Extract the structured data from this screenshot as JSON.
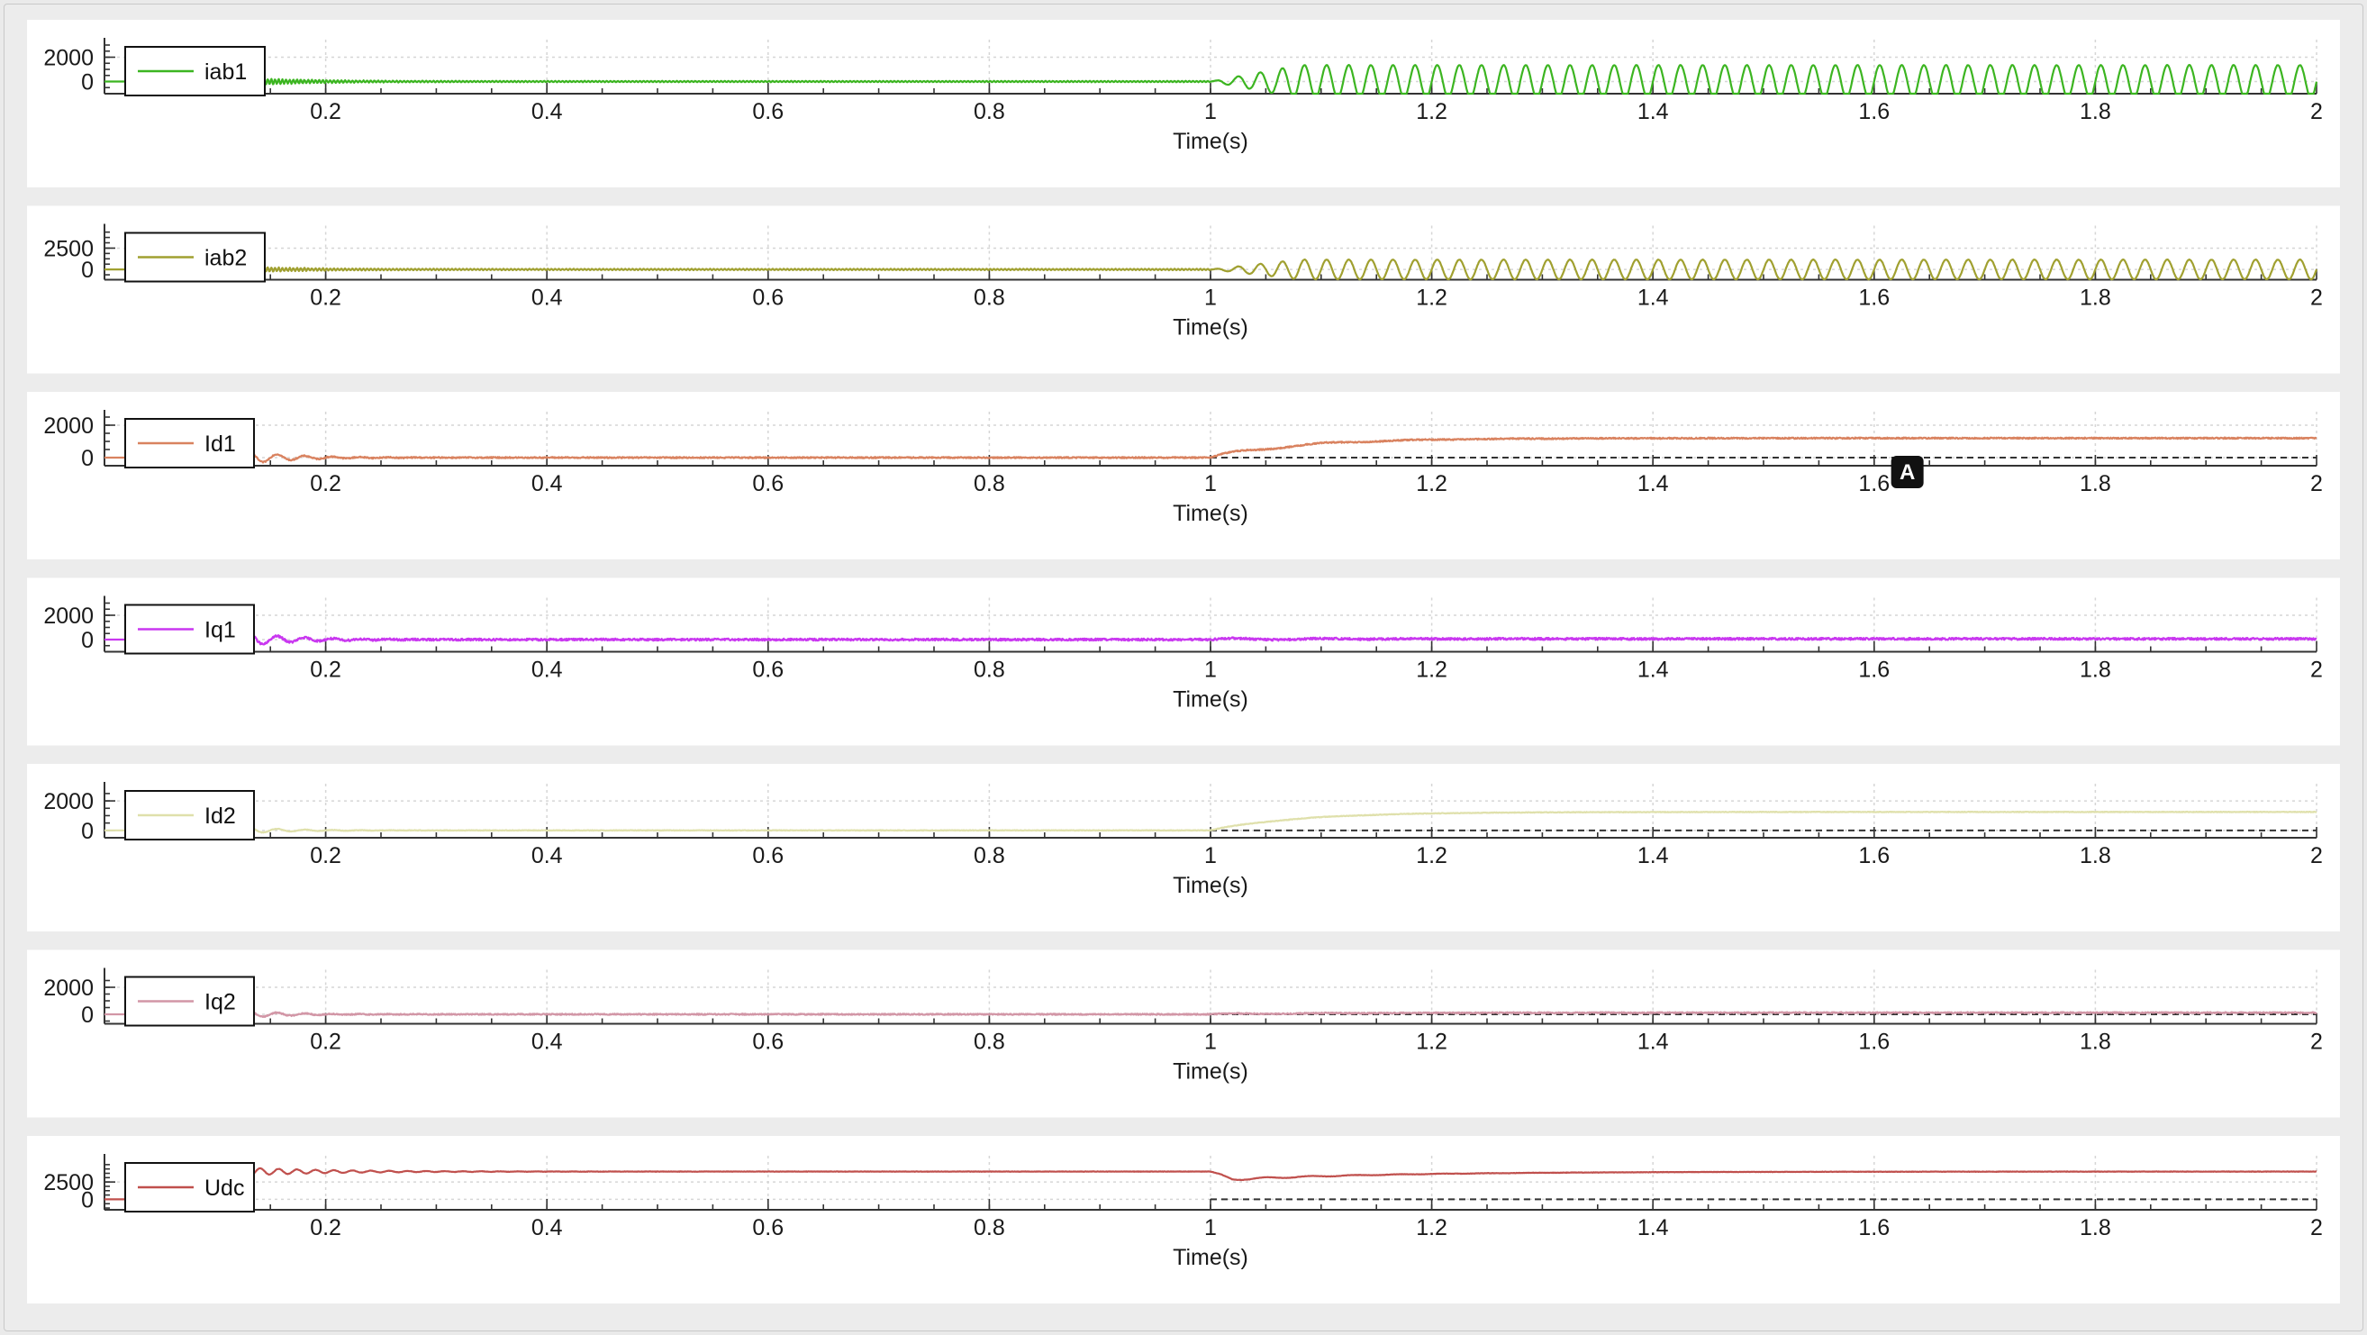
{
  "chart_data": [
    {
      "type": "line",
      "xlabel": "Time(s)",
      "xlim": [
        0,
        2
      ],
      "xticks": [
        "0.2",
        "0.4",
        "0.6",
        "0.8",
        "1",
        "1.2",
        "1.4",
        "1.6",
        "1.8",
        "2"
      ],
      "ylim": [
        -1000,
        3000
      ],
      "yticks": [
        "2000",
        "0"
      ],
      "legend": "top-left",
      "grid": true,
      "series": [
        {
          "name": "iab1",
          "color": "#3cb521",
          "shape": {
            "kind": "ac",
            "start": 0.12,
            "spike": 2700,
            "early_amp": 380,
            "early_freq": 300,
            "mid_amp": 60,
            "step_time": 1.0,
            "post_amp": 1350,
            "post_freq": 50,
            "ramp": 0.08
          }
        }
      ],
      "reference_line": false
    },
    {
      "type": "line",
      "xlabel": "Time(s)",
      "xlim": [
        0,
        2
      ],
      "xticks": [
        "0.2",
        "0.4",
        "0.6",
        "0.8",
        "1",
        "1.2",
        "1.4",
        "1.6",
        "1.8",
        "2"
      ],
      "ylim": [
        -1200,
        4500
      ],
      "yticks": [
        "2500",
        "0"
      ],
      "legend": "top-left",
      "grid": true,
      "series": [
        {
          "name": "iab2",
          "color": "#a0a030",
          "shape": {
            "kind": "ac",
            "start": 0.12,
            "spike": 3600,
            "early_amp": 350,
            "early_freq": 300,
            "mid_amp": 90,
            "step_time": 1.0,
            "post_amp": 1150,
            "post_freq": 50,
            "ramp": 0.08
          }
        }
      ],
      "reference_line": false
    },
    {
      "type": "line",
      "xlabel": "Time(s)",
      "xlim": [
        0,
        2
      ],
      "xticks": [
        "0.2",
        "0.4",
        "0.6",
        "0.8",
        "1",
        "1.2",
        "1.4",
        "1.6",
        "1.8",
        "2"
      ],
      "ylim": [
        -500,
        2500
      ],
      "yticks": [
        "2000",
        "0"
      ],
      "legend": "top-left",
      "grid": true,
      "series": [
        {
          "name": "Id1",
          "color": "#d9825f",
          "shape": {
            "kind": "dc",
            "start": 0.12,
            "spike": 2100,
            "transient": 500,
            "pre": 0,
            "step_time": 1.0,
            "post": 1200,
            "tau": 0.08,
            "ripple": 40,
            "post_osc": 250
          }
        }
      ],
      "reference_line": true,
      "cursor_label": "A"
    },
    {
      "type": "line",
      "xlabel": "Time(s)",
      "xlim": [
        0,
        2
      ],
      "xticks": [
        "0.2",
        "0.4",
        "0.6",
        "0.8",
        "1",
        "1.2",
        "1.4",
        "1.6",
        "1.8",
        "2"
      ],
      "ylim": [
        -1000,
        3000
      ],
      "yticks": [
        "2000",
        "0"
      ],
      "legend": "top-left",
      "grid": true,
      "series": [
        {
          "name": "Iq1",
          "color": "#c937f0",
          "shape": {
            "kind": "dc",
            "start": 0.12,
            "spike": 2100,
            "transient": 700,
            "pre": 0,
            "step_time": 1.0,
            "post": 60,
            "tau": 0.05,
            "ripple": 90,
            "post_osc": 200
          }
        }
      ],
      "reference_line": false
    },
    {
      "type": "line",
      "xlabel": "Time(s)",
      "xlim": [
        0,
        2
      ],
      "xticks": [
        "0.2",
        "0.4",
        "0.6",
        "0.8",
        "1",
        "1.2",
        "1.4",
        "1.6",
        "1.8",
        "2"
      ],
      "ylim": [
        -500,
        2800
      ],
      "yticks": [
        "2000",
        "0"
      ],
      "legend": "top-left",
      "grid": true,
      "series": [
        {
          "name": "Id2",
          "color": "#dfe0ab",
          "shape": {
            "kind": "dc",
            "start": 0.12,
            "spike": 2400,
            "transient": 250,
            "pre": 0,
            "step_time": 1.0,
            "post": 1250,
            "tau": 0.08,
            "ripple": 20,
            "post_osc": 60
          }
        }
      ],
      "reference_line": true
    },
    {
      "type": "line",
      "xlabel": "Time(s)",
      "xlim": [
        0,
        2
      ],
      "xticks": [
        "0.2",
        "0.4",
        "0.6",
        "0.8",
        "1",
        "1.2",
        "1.4",
        "1.6",
        "1.8",
        "2"
      ],
      "ylim": [
        -700,
        2900
      ],
      "yticks": [
        "2000",
        "0"
      ],
      "legend": "top-left",
      "grid": true,
      "series": [
        {
          "name": "Iq2",
          "color": "#d296a6",
          "shape": {
            "kind": "dc",
            "start": 0.12,
            "spike": 2200,
            "transient": 300,
            "pre": 0,
            "step_time": 1.0,
            "post": 120,
            "tau": 0.1,
            "ripple": 45,
            "post_osc": 100
          }
        }
      ],
      "reference_line": true
    },
    {
      "type": "line",
      "xlabel": "Time(s)",
      "xlim": [
        0,
        2
      ],
      "xticks": [
        "0.2",
        "0.4",
        "0.6",
        "0.8",
        "1",
        "1.2",
        "1.4",
        "1.6",
        "1.8",
        "2"
      ],
      "ylim": [
        -1500,
        5500
      ],
      "yticks": [
        "2500",
        "0"
      ],
      "legend": "top-left",
      "grid": true,
      "series": [
        {
          "name": "Udc",
          "color": "#c0504d",
          "shape": {
            "kind": "udc",
            "start": 0.12,
            "base": 4000,
            "overshoot": 600,
            "osc_freq": 60,
            "step_time": 1.0,
            "dip": 1300,
            "tau": 0.15,
            "ripple": 25
          }
        }
      ],
      "reference_line": true
    }
  ]
}
